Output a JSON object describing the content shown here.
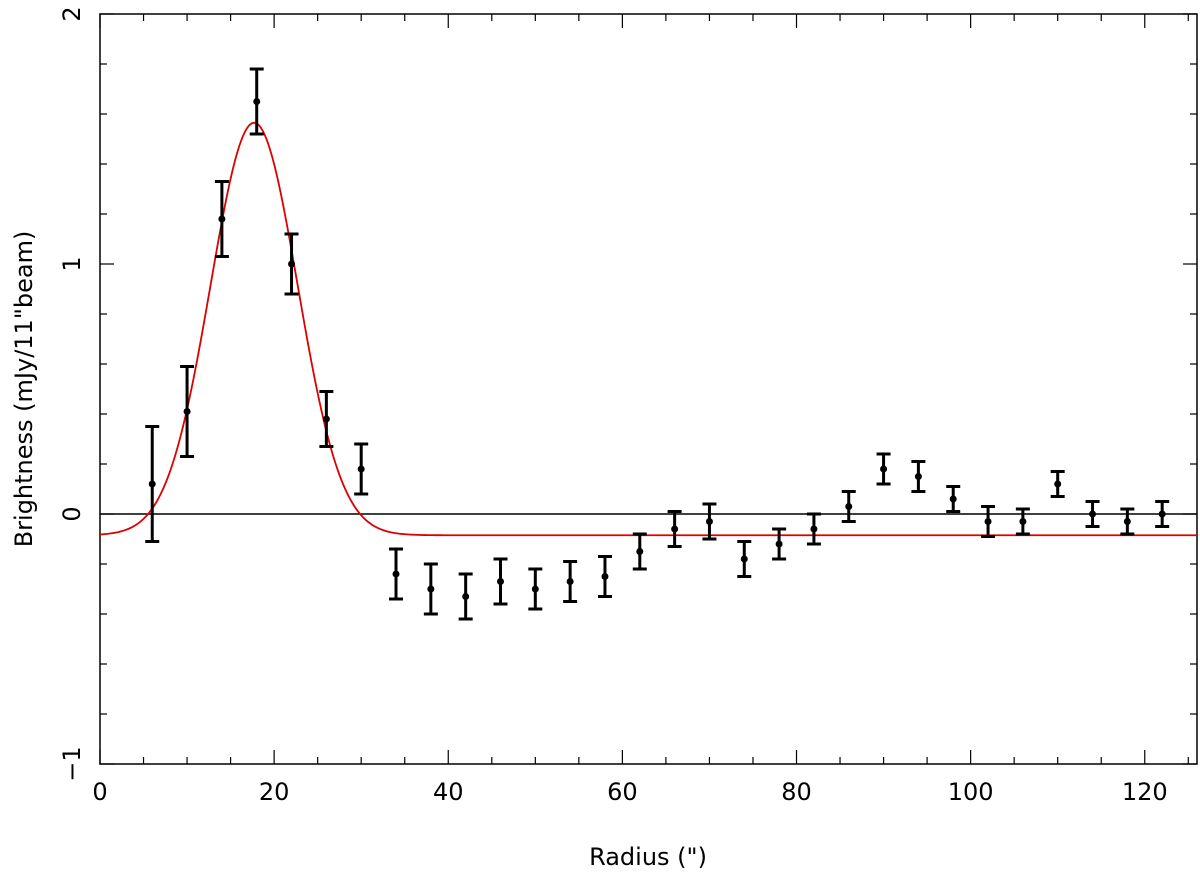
{
  "chart_data": {
    "type": "scatter",
    "title": "",
    "xlabel": "Radius (\")",
    "ylabel": "Brightness (mJy/11\"beam)",
    "xlim": [
      0,
      126
    ],
    "ylim": [
      -1,
      2
    ],
    "xticks": [
      0,
      20,
      40,
      60,
      80,
      100,
      120
    ],
    "xtick_labels": [
      "0",
      "20",
      "40",
      "60",
      "80",
      "100",
      "120"
    ],
    "yticks": [
      -1,
      0,
      1,
      2
    ],
    "ytick_labels": [
      "−1",
      "0",
      "1",
      "2"
    ],
    "grid": false,
    "legend": "none",
    "reference_line": {
      "y": 0,
      "color": "#000000"
    },
    "series": [
      {
        "kind": "points_with_errorbars",
        "color": "#000000",
        "x": [
          6,
          10,
          14,
          18,
          22,
          26,
          30,
          34,
          38,
          42,
          46,
          50,
          54,
          58,
          62,
          66,
          70,
          74,
          78,
          82,
          86,
          90,
          94,
          98,
          102,
          106,
          110,
          114,
          118,
          122
        ],
        "y": [
          0.12,
          0.41,
          1.18,
          1.65,
          1.0,
          0.38,
          0.18,
          -0.24,
          -0.3,
          -0.33,
          -0.27,
          -0.3,
          -0.27,
          -0.25,
          -0.15,
          -0.06,
          -0.03,
          -0.18,
          -0.12,
          -0.06,
          0.03,
          0.18,
          0.15,
          0.06,
          -0.03,
          -0.03,
          0.12,
          0.0,
          -0.03,
          0.0
        ],
        "yerr": [
          0.23,
          0.18,
          0.15,
          0.13,
          0.12,
          0.11,
          0.1,
          0.1,
          0.1,
          0.09,
          0.09,
          0.08,
          0.08,
          0.08,
          0.07,
          0.07,
          0.07,
          0.07,
          0.06,
          0.06,
          0.06,
          0.06,
          0.06,
          0.05,
          0.06,
          0.05,
          0.05,
          0.05,
          0.05,
          0.05
        ]
      },
      {
        "kind": "gaussian_fit_curve",
        "color": "#dd0000",
        "amplitude": 1.65,
        "center": 17.7,
        "sigma": 5.0,
        "offset": -0.085,
        "x_range": [
          0,
          126
        ]
      }
    ]
  }
}
